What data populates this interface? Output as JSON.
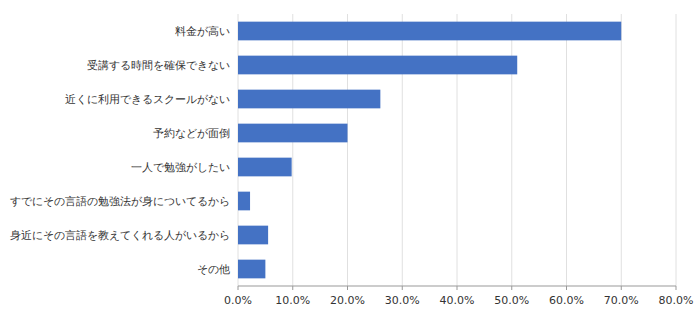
{
  "chart_data": {
    "type": "bar",
    "orientation": "horizontal",
    "categories": [
      "その他",
      "身近にその言語を教えてくれる人がいるから",
      "すでにその言語の勉強法が身についてるから",
      "一人で勉強がしたい",
      "予約などが面倒",
      "近くに利用できるスクールがない",
      "受講する時間を確保できない",
      "料金が高い"
    ],
    "values": [
      0.05,
      0.055,
      0.022,
      0.098,
      0.2,
      0.26,
      0.51,
      0.7
    ],
    "color": "#4472C4",
    "xlim": [
      0,
      0.8
    ],
    "xticks": [
      {
        "value": 0.0,
        "label": "0.0%"
      },
      {
        "value": 0.1,
        "label": "10.0%"
      },
      {
        "value": 0.2,
        "label": "20.0%"
      },
      {
        "value": 0.3,
        "label": "30.0%"
      },
      {
        "value": 0.4,
        "label": "40.0%"
      },
      {
        "value": 0.5,
        "label": "50.0%"
      },
      {
        "value": 0.6,
        "label": "60.0%"
      },
      {
        "value": 0.7,
        "label": "70.0%"
      },
      {
        "value": 0.8,
        "label": "80.0%"
      }
    ],
    "grid": true
  }
}
